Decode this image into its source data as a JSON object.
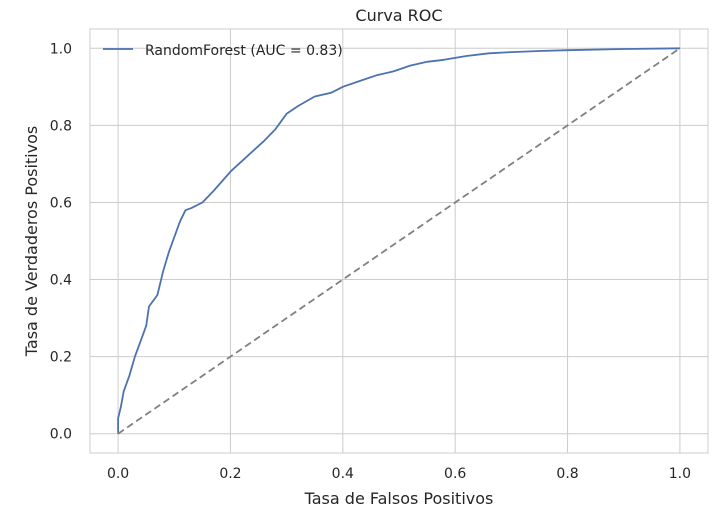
{
  "chart_data": {
    "type": "line",
    "title": "Curva ROC",
    "xlabel": "Tasa de Falsos Positivos",
    "ylabel": "Tasa de Verdaderos Positivos",
    "xlim": [
      -0.05,
      1.05
    ],
    "ylim": [
      -0.05,
      1.05
    ],
    "xticks": [
      0.0,
      0.2,
      0.4,
      0.6,
      0.8,
      1.0
    ],
    "yticks": [
      0.0,
      0.2,
      0.4,
      0.6,
      0.8,
      1.0
    ],
    "xtick_labels": [
      "0.0",
      "0.2",
      "0.4",
      "0.6",
      "0.8",
      "1.0"
    ],
    "ytick_labels": [
      "0.0",
      "0.2",
      "0.4",
      "0.6",
      "0.8",
      "1.0"
    ],
    "grid": true,
    "legend": {
      "position": "top-left",
      "entries": [
        "RandomForest (AUC = 0.83)"
      ]
    },
    "series": [
      {
        "name": "RandomForest (AUC = 0.83)",
        "color": "#4c72b0",
        "style": "solid",
        "x": [
          0.0,
          0.0,
          0.005,
          0.01,
          0.02,
          0.03,
          0.04,
          0.05,
          0.055,
          0.07,
          0.08,
          0.09,
          0.1,
          0.11,
          0.12,
          0.13,
          0.15,
          0.17,
          0.2,
          0.23,
          0.26,
          0.28,
          0.3,
          0.32,
          0.35,
          0.38,
          0.4,
          0.43,
          0.46,
          0.49,
          0.52,
          0.55,
          0.58,
          0.62,
          0.66,
          0.7,
          0.75,
          0.8,
          0.9,
          1.0
        ],
        "y": [
          0.0,
          0.04,
          0.07,
          0.11,
          0.15,
          0.2,
          0.24,
          0.28,
          0.33,
          0.36,
          0.42,
          0.47,
          0.51,
          0.55,
          0.58,
          0.585,
          0.6,
          0.63,
          0.68,
          0.72,
          0.76,
          0.79,
          0.83,
          0.85,
          0.875,
          0.885,
          0.9,
          0.915,
          0.93,
          0.94,
          0.955,
          0.965,
          0.97,
          0.98,
          0.987,
          0.99,
          0.993,
          0.995,
          0.998,
          1.0
        ]
      },
      {
        "name": "",
        "color": "#808080",
        "style": "dashed",
        "x": [
          0.0,
          1.0
        ],
        "y": [
          0.0,
          1.0
        ]
      }
    ]
  }
}
